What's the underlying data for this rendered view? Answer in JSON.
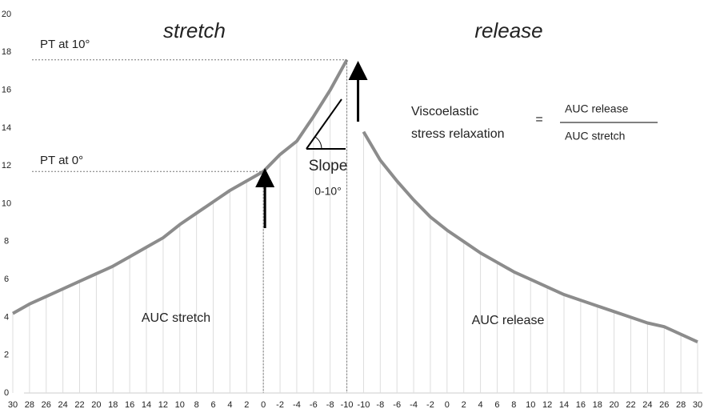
{
  "chart_data": {
    "type": "line",
    "categories": [
      "30",
      "28",
      "26",
      "24",
      "22",
      "20",
      "18",
      "16",
      "14",
      "12",
      "10",
      "8",
      "6",
      "4",
      "2",
      "0",
      "-2",
      "-4",
      "-6",
      "-8",
      "-10",
      "-10",
      "-8",
      "-6",
      "-4",
      "-2",
      "0",
      "2",
      "4",
      "6",
      "8",
      "10",
      "12",
      "14",
      "16",
      "18",
      "20",
      "22",
      "24",
      "26",
      "28",
      "30"
    ],
    "series": [
      {
        "name": "stretch",
        "color": "#8c8c8c",
        "values": [
          4.2,
          4.7,
          5.1,
          5.5,
          5.9,
          6.3,
          6.7,
          7.2,
          7.7,
          8.2,
          8.9,
          9.5,
          10.1,
          10.7,
          11.2,
          11.7,
          12.6,
          13.3,
          14.6,
          16.0,
          17.6,
          null,
          null,
          null,
          null,
          null,
          null,
          null,
          null,
          null,
          null,
          null,
          null,
          null,
          null,
          null,
          null,
          null,
          null,
          null,
          null,
          null
        ]
      },
      {
        "name": "release",
        "color": "#8c8c8c",
        "values": [
          null,
          null,
          null,
          null,
          null,
          null,
          null,
          null,
          null,
          null,
          null,
          null,
          null,
          null,
          null,
          null,
          null,
          null,
          null,
          null,
          null,
          13.8,
          12.3,
          11.2,
          10.2,
          9.3,
          8.6,
          8.0,
          7.4,
          6.9,
          6.4,
          6.0,
          5.6,
          5.2,
          4.9,
          4.6,
          4.3,
          4.0,
          3.7,
          3.5,
          3.1,
          2.7
        ]
      }
    ],
    "ylim": [
      0,
      20
    ],
    "yticks": [
      0,
      2,
      4,
      6,
      8,
      10,
      12,
      14,
      16,
      18,
      20
    ],
    "annotations": [
      "PT at 10°",
      "PT at 0°",
      "Slope",
      "0-10°",
      "Viscoelastic",
      "stress relaxation",
      "=",
      "AUC release",
      "AUC stretch",
      "AUC stretch",
      "AUC release"
    ]
  }
}
